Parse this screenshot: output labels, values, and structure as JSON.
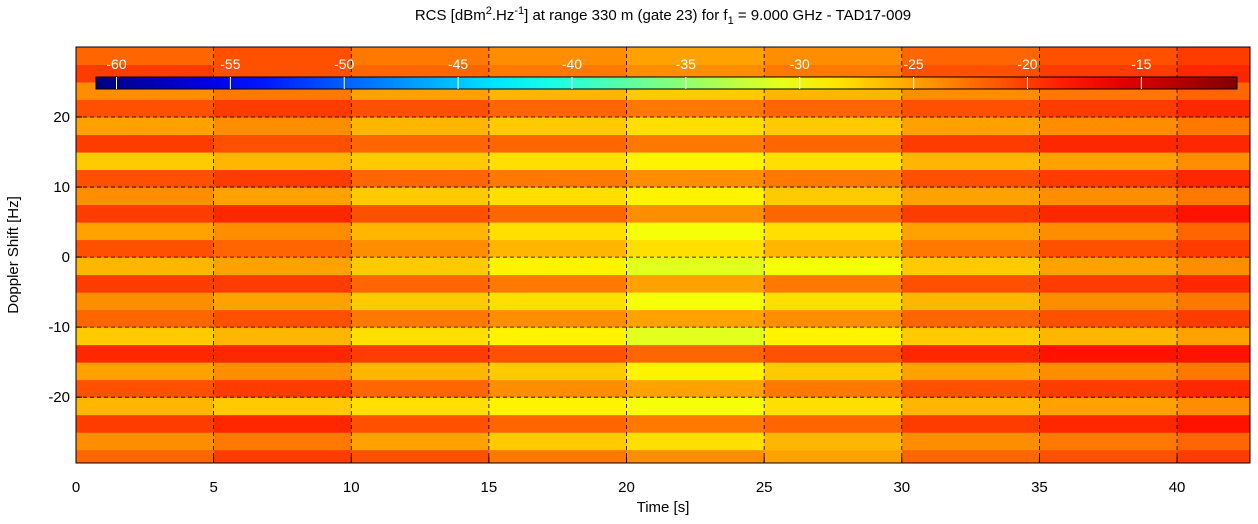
{
  "chart_data": {
    "type": "heatmap",
    "title_segments": [
      "RCS [dBm",
      "2",
      ".Hz",
      "-1",
      "] at range 330 m (gate 23) for f",
      "1",
      " = 9.000 GHz - TAD17-009"
    ],
    "x_label": "Time [s]",
    "y_label": "Doppler Shift [Hz]",
    "xlim": [
      0,
      42.65
    ],
    "ylim": [
      -29.4,
      30
    ],
    "xticks": [
      0,
      5,
      10,
      15,
      20,
      25,
      30,
      35,
      40
    ],
    "yticks": [
      -20,
      -10,
      0,
      10,
      20
    ],
    "grid": true,
    "colormap": "jet",
    "clim": [
      -60.9,
      -10.8
    ],
    "colorbar_ticks": [
      -60,
      -55,
      -50,
      -45,
      -40,
      -35,
      -30,
      -25,
      -20,
      -15
    ],
    "x_edges": [
      0,
      5,
      10,
      15,
      20,
      25,
      30,
      35,
      40,
      42.65
    ],
    "y_edges": [
      -29.4,
      -27.5,
      -25,
      -22.5,
      -20,
      -17.5,
      -15,
      -12.5,
      -10,
      -7.5,
      -5,
      -2.5,
      0,
      2.5,
      5,
      7.5,
      10,
      12.5,
      15,
      17.5,
      20,
      22.5,
      25,
      27.5,
      30
    ],
    "z": [
      [
        -22,
        -20,
        -21,
        -23,
        -24,
        -25,
        -22,
        -21,
        -20
      ],
      [
        -24,
        -23,
        -25,
        -27,
        -28,
        -26,
        -24,
        -23,
        -22
      ],
      [
        -20,
        -19,
        -21,
        -22,
        -23,
        -22,
        -20,
        -19,
        -18
      ],
      [
        -26,
        -27,
        -28,
        -29,
        -30,
        -28,
        -26,
        -25,
        -24
      ],
      [
        -21,
        -20,
        -22,
        -24,
        -25,
        -23,
        -21,
        -20,
        -19
      ],
      [
        -25,
        -24,
        -26,
        -27,
        -29,
        -27,
        -25,
        -24,
        -23
      ],
      [
        -19,
        -19,
        -20,
        -21,
        -22,
        -21,
        -19,
        -18,
        -18
      ],
      [
        -27,
        -26,
        -28,
        -29,
        -31,
        -29,
        -27,
        -26,
        -25
      ],
      [
        -22,
        -21,
        -23,
        -24,
        -25,
        -24,
        -22,
        -21,
        -20
      ],
      [
        -24,
        -25,
        -27,
        -28,
        -30,
        -28,
        -26,
        -24,
        -23
      ],
      [
        -20,
        -20,
        -22,
        -23,
        -25,
        -23,
        -21,
        -20,
        -19
      ],
      [
        -26,
        -25,
        -27,
        -29,
        -31,
        -30,
        -27,
        -25,
        -24
      ],
      [
        -21,
        -22,
        -24,
        -26,
        -28,
        -26,
        -23,
        -21,
        -20
      ],
      [
        -25,
        -24,
        -26,
        -28,
        -30,
        -28,
        -25,
        -24,
        -22
      ],
      [
        -20,
        -19,
        -21,
        -22,
        -24,
        -22,
        -20,
        -19,
        -18
      ],
      [
        -24,
        -25,
        -27,
        -28,
        -29,
        -27,
        -25,
        -24,
        -23
      ],
      [
        -21,
        -20,
        -22,
        -23,
        -24,
        -23,
        -21,
        -20,
        -19
      ],
      [
        -27,
        -26,
        -27,
        -28,
        -29,
        -28,
        -26,
        -25,
        -24
      ],
      [
        -20,
        -21,
        -22,
        -22,
        -23,
        -22,
        -20,
        -19,
        -19
      ],
      [
        -25,
        -24,
        -26,
        -27,
        -28,
        -27,
        -25,
        -24,
        -23
      ],
      [
        -21,
        -20,
        -21,
        -22,
        -23,
        -22,
        -21,
        -20,
        -19
      ],
      [
        -24,
        -23,
        -25,
        -26,
        -27,
        -26,
        -24,
        -23,
        -22
      ],
      [
        -20,
        -21,
        -22,
        -23,
        -24,
        -23,
        -21,
        -20,
        -19
      ],
      [
        -22,
        -21,
        -23,
        -24,
        -25,
        -24,
        -22,
        -21,
        -20
      ]
    ]
  }
}
